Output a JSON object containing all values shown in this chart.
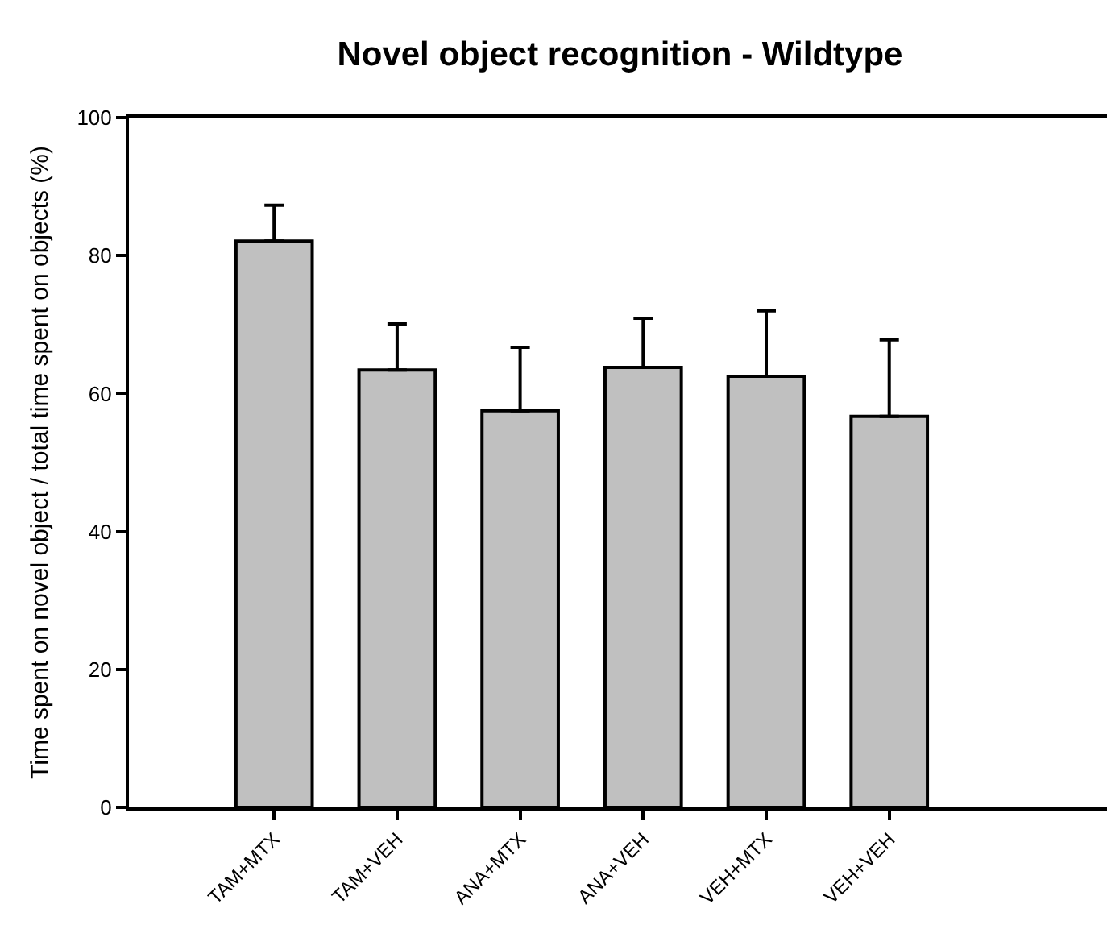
{
  "chart_data": {
    "type": "bar",
    "title": "Novel object recognition - Wildtype",
    "ylabel": "Time spent on novel object / total time spent on objects (%)",
    "categories": [
      "TAM+MTX",
      "TAM+VEH",
      "ANA+MTX",
      "ANA+VEH",
      "VEH+MTX",
      "VEH+VEH"
    ],
    "values": [
      82.1,
      63.4,
      57.5,
      63.8,
      62.5,
      56.7
    ],
    "errors": [
      [
        82.1,
        87.3
      ],
      [
        63.4,
        70.1
      ],
      [
        57.5,
        66.7
      ],
      [
        63.8,
        70.9
      ],
      [
        62.5,
        72.0
      ],
      [
        56.7,
        67.8
      ]
    ],
    "color": "#c0c0c0",
    "ylim": [
      0,
      100
    ],
    "yticks": [
      0,
      20,
      40,
      60,
      80,
      100
    ]
  }
}
